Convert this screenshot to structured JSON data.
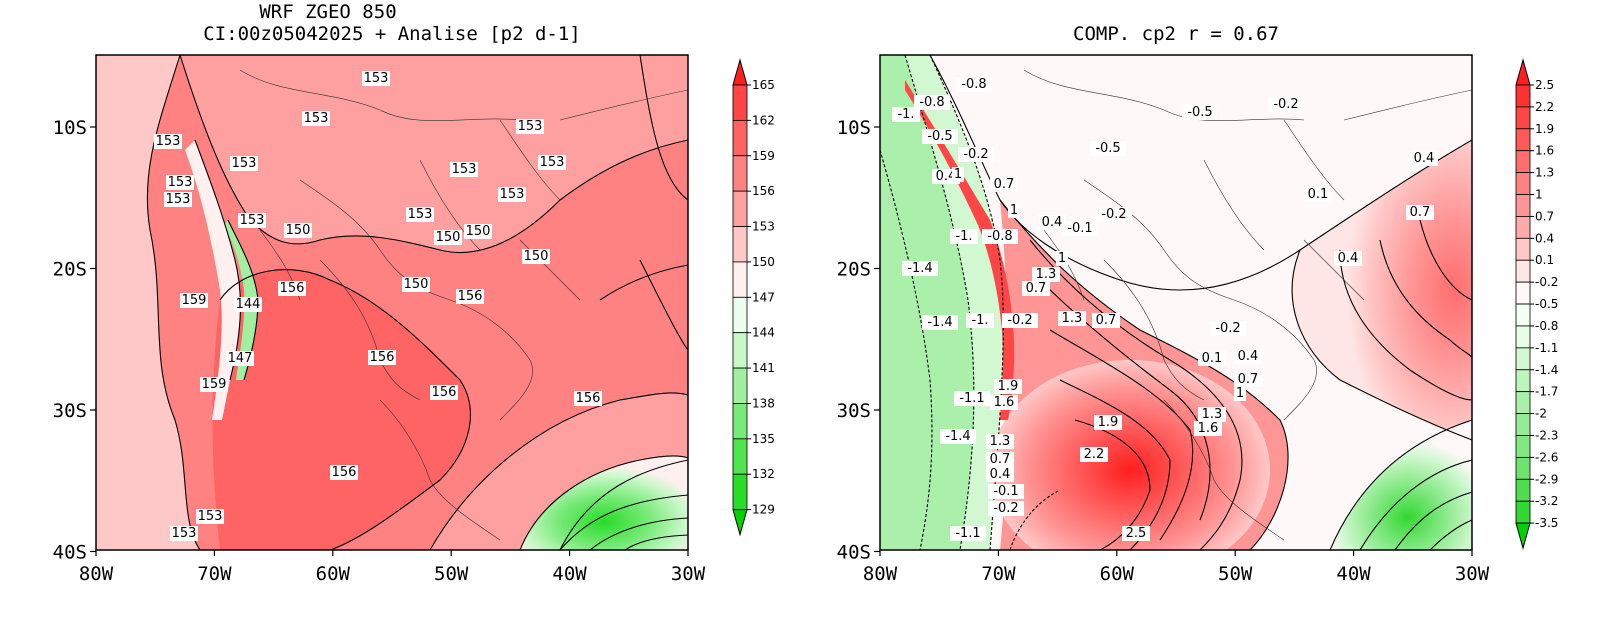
{
  "left_panel": {
    "title_line1": "WRF ZGEO 850",
    "title_line2": "CI:00z05042025 + Analise  [p2 d-1]",
    "x_ticks": [
      "80W",
      "70W",
      "60W",
      "50W",
      "40W",
      "30W"
    ],
    "y_ticks": [
      "10S",
      "20S",
      "30S",
      "40S"
    ],
    "colorbar_labels": [
      "165",
      "162",
      "159",
      "156",
      "153",
      "150",
      "147",
      "144",
      "141",
      "138",
      "135",
      "132",
      "129"
    ],
    "colorbar_colors": [
      "#ff1e1e",
      "#ff4646",
      "#ff6464",
      "#ff8282",
      "#ffa0a0",
      "#ffc8c8",
      "#fff0f0",
      "#eefeee",
      "#c8f8c8",
      "#a0f0a0",
      "#78ea78",
      "#50e450",
      "#28dc28",
      "#00d400"
    ],
    "contour_labels": [
      "153",
      "153",
      "153",
      "153",
      "153",
      "153",
      "153",
      "153",
      "153",
      "153",
      "153",
      "153",
      "150",
      "150",
      "150",
      "150",
      "150",
      "144",
      "147",
      "156",
      "156",
      "156",
      "156",
      "156",
      "156",
      "159",
      "159",
      "153",
      "153"
    ]
  },
  "right_panel": {
    "title": "COMP. cp2  r =  0.67",
    "x_ticks": [
      "80W",
      "70W",
      "60W",
      "50W",
      "40W",
      "30W"
    ],
    "y_ticks": [
      "10S",
      "20S",
      "30S",
      "40S"
    ],
    "colorbar_labels": [
      "2.5",
      "2.2",
      "1.9",
      "1.6",
      "1.3",
      "1",
      "0.7",
      "0.4",
      "0.1",
      "-0.2",
      "-0.5",
      "-0.8",
      "-1.1",
      "-1.4",
      "-1.7",
      "-2",
      "-2.3",
      "-2.6",
      "-2.9",
      "-3.2",
      "-3.5"
    ],
    "colorbar_colors": [
      "#ff1e1e",
      "#ff3232",
      "#ff4646",
      "#ff5a5a",
      "#ff6e6e",
      "#ff8282",
      "#ff9696",
      "#ffaaaa",
      "#ffc8c8",
      "#ffe6e6",
      "#fff8f8",
      "#f4fef4",
      "#e6fce6",
      "#d2f8d2",
      "#bef4be",
      "#aaf0aa",
      "#96ec96",
      "#82e882",
      "#6ee46e",
      "#50de50",
      "#32d832",
      "#00d400"
    ],
    "contour_labels": [
      "-0.8",
      "-0.8",
      "-1.",
      "-0.5",
      "-0.2",
      "0.4",
      "1",
      "0.7",
      "1",
      "0.4",
      "-0.1",
      "-0.2",
      "-1.",
      "-0.8",
      "-1.4",
      "1",
      "1.3",
      "0.7",
      "-1.4",
      "-1.",
      "-0.2",
      "1.3",
      "0.7",
      "1.9",
      "-1.1",
      "1.6",
      "-1.4",
      "1.3",
      "0.7",
      "0.4",
      "-0.1",
      "-0.2",
      "-1.1",
      "1.9",
      "2.2",
      "2.5",
      "-0.5",
      "-0.5",
      "-0.2",
      "-0.2",
      "0.1",
      "0.4",
      "0.7",
      "1",
      "1.3",
      "1.6",
      "0.1",
      "0.4",
      "0.4",
      "0.7"
    ]
  }
}
